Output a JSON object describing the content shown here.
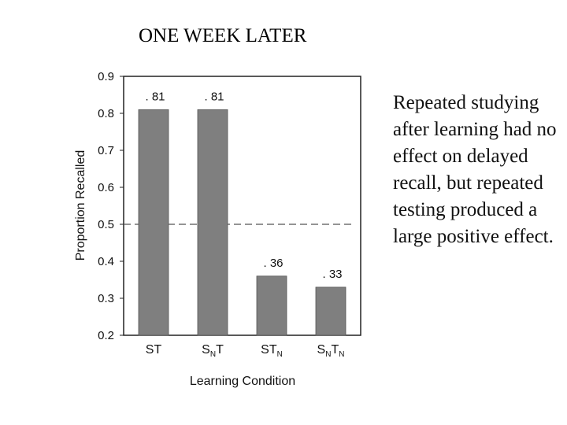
{
  "title": "ONE WEEK LATER",
  "side_text": "Repeated studying after learning had no effect on delayed recall, but repeated testing produced a large positive effect.",
  "colors": {
    "bar": "#7f7f7f",
    "reference_line": "#555555"
  },
  "chart_data": {
    "type": "bar",
    "title": "ONE WEEK LATER",
    "xlabel": "Learning Condition",
    "ylabel": "Proportion Recalled",
    "ylim": [
      0.2,
      0.9
    ],
    "yticks": [
      "0.2",
      "0.3",
      "0.4",
      "0.5",
      "0.6",
      "0.7",
      "0.8",
      "0.9"
    ],
    "categories": [
      {
        "base": "S",
        "sub1": "",
        "mid": "T",
        "sub2": ""
      },
      {
        "base": "S",
        "sub1": "N",
        "mid": "T",
        "sub2": ""
      },
      {
        "base": "S",
        "sub1": "",
        "mid": "T",
        "sub2": "N"
      },
      {
        "base": "S",
        "sub1": "N",
        "mid": "T",
        "sub2": "N"
      }
    ],
    "values": [
      0.81,
      0.81,
      0.36,
      0.33
    ],
    "data_labels": [
      ". 81",
      ". 81",
      ". 36",
      ". 33"
    ],
    "reference_line": 0.5,
    "grid": false,
    "legend": "none"
  }
}
